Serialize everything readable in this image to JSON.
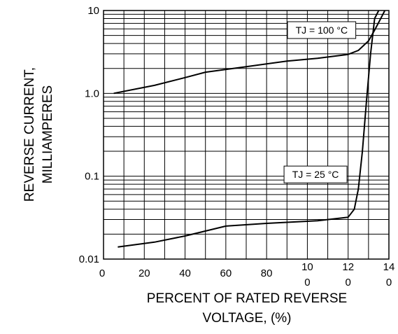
{
  "chart_data": {
    "type": "line",
    "xlabel": [
      "PERCENT OF RATED REVERSE",
      "VOLTAGE, (%)"
    ],
    "ylabel": [
      "REVERSE CURRENT,",
      "MILLIAMPERES"
    ],
    "xlim": [
      0,
      140
    ],
    "ylim": [
      0.01,
      10
    ],
    "y_scale": "log",
    "grid": true,
    "x_ticks": [
      {
        "value": 0,
        "label": "0"
      },
      {
        "value": 20,
        "label": "20"
      },
      {
        "value": 40,
        "label": "40"
      },
      {
        "value": 60,
        "label": "60"
      },
      {
        "value": 80,
        "label": "80"
      },
      {
        "value": 100,
        "label": "10\n0"
      },
      {
        "value": 120,
        "label": "12\n0"
      },
      {
        "value": 140,
        "label": "14\n0"
      }
    ],
    "y_ticks": [
      {
        "value": 0.01,
        "label": "0.01"
      },
      {
        "value": 0.1,
        "label": "0.1"
      },
      {
        "value": 1.0,
        "label": "1.0"
      },
      {
        "value": 10,
        "label": "10"
      }
    ],
    "annotations": [
      {
        "text": "TJ = 100 °C",
        "x": 107,
        "y": 5.8
      },
      {
        "text": "TJ = 25 °C",
        "x": 104,
        "y": 0.105
      }
    ],
    "series": [
      {
        "x": [
          5,
          25,
          40,
          50,
          70,
          90,
          105,
          120,
          125,
          130,
          133,
          136,
          138
        ],
        "y": [
          1.0,
          1.25,
          1.55,
          1.8,
          2.1,
          2.45,
          2.65,
          2.95,
          3.3,
          4.3,
          5.8,
          8.0,
          10.0
        ]
      },
      {
        "x": [
          7,
          25,
          40,
          60,
          80,
          105,
          120,
          123,
          125,
          127,
          129,
          131,
          133,
          135
        ],
        "y": [
          0.014,
          0.016,
          0.019,
          0.025,
          0.027,
          0.029,
          0.032,
          0.04,
          0.07,
          0.2,
          0.8,
          3.0,
          8.0,
          10.0
        ]
      }
    ]
  }
}
